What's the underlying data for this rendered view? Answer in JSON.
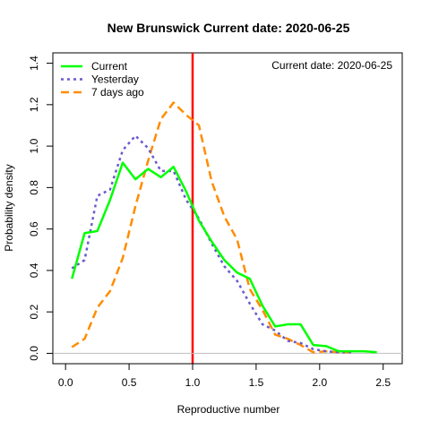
{
  "chart_data": {
    "type": "line",
    "title": "New Brunswick   Current date:  2020-06-25",
    "annotation": "Current date:  2020-06-25",
    "xlabel": "Reproductive number",
    "ylabel": "Probability density",
    "xlim": [
      -0.1,
      2.65
    ],
    "ylim": [
      -0.05,
      1.45
    ],
    "x_ticks": [
      0.0,
      0.5,
      1.0,
      1.5,
      2.0,
      2.5
    ],
    "x_tick_labels": [
      "0.0",
      "0.5",
      "1.0",
      "1.5",
      "2.0",
      "2.5"
    ],
    "y_ticks": [
      0.0,
      0.2,
      0.4,
      0.6,
      0.8,
      1.0,
      1.2,
      1.4
    ],
    "y_tick_labels": [
      "0.0",
      "0.2",
      "0.4",
      "0.6",
      "0.8",
      "1.0",
      "1.2",
      "1.4"
    ],
    "legend_position": "top-left",
    "grid": false,
    "reference_lines": [
      {
        "axis": "x",
        "value": 1.0,
        "color": "#ff0000"
      },
      {
        "axis": "y",
        "value": 0.0,
        "color": "#bebebe"
      }
    ],
    "series": [
      {
        "name": "Current",
        "color": "#00ff00",
        "style": "solid",
        "x": [
          0.05,
          0.15,
          0.25,
          0.35,
          0.45,
          0.55,
          0.65,
          0.75,
          0.85,
          0.95,
          1.05,
          1.15,
          1.25,
          1.35,
          1.45,
          1.55,
          1.65,
          1.75,
          1.85,
          1.95,
          2.05,
          2.15,
          2.25,
          2.35,
          2.45
        ],
        "y": [
          0.36,
          0.58,
          0.59,
          0.74,
          0.92,
          0.84,
          0.89,
          0.85,
          0.9,
          0.78,
          0.64,
          0.54,
          0.45,
          0.39,
          0.36,
          0.23,
          0.13,
          0.14,
          0.14,
          0.04,
          0.035,
          0.01,
          0.01,
          0.01,
          0.005
        ]
      },
      {
        "name": "Yesterday",
        "color": "#6a5acd",
        "style": "dotted",
        "x": [
          0.05,
          0.15,
          0.25,
          0.35,
          0.45,
          0.55,
          0.65,
          0.75,
          0.85,
          0.95,
          1.05,
          1.15,
          1.25,
          1.35,
          1.45,
          1.55,
          1.65,
          1.75,
          1.85,
          1.95,
          2.05,
          2.15,
          2.25
        ],
        "y": [
          0.41,
          0.45,
          0.76,
          0.79,
          0.98,
          1.05,
          0.99,
          0.88,
          0.88,
          0.74,
          0.65,
          0.53,
          0.42,
          0.35,
          0.24,
          0.14,
          0.11,
          0.06,
          0.05,
          0.02,
          0.01,
          0.005,
          0.005
        ]
      },
      {
        "name": "7 days ago",
        "color": "#ff8c00",
        "style": "dashed",
        "x": [
          0.05,
          0.15,
          0.25,
          0.35,
          0.45,
          0.55,
          0.65,
          0.75,
          0.85,
          0.95,
          1.05,
          1.15,
          1.25,
          1.35,
          1.45,
          1.55,
          1.65,
          1.75,
          1.85,
          1.95,
          2.05,
          2.15,
          2.25
        ],
        "y": [
          0.03,
          0.07,
          0.22,
          0.3,
          0.46,
          0.71,
          0.93,
          1.13,
          1.21,
          1.15,
          1.1,
          0.83,
          0.66,
          0.55,
          0.31,
          0.21,
          0.09,
          0.07,
          0.04,
          0.005,
          0.01,
          0.005,
          0.005
        ]
      }
    ]
  }
}
